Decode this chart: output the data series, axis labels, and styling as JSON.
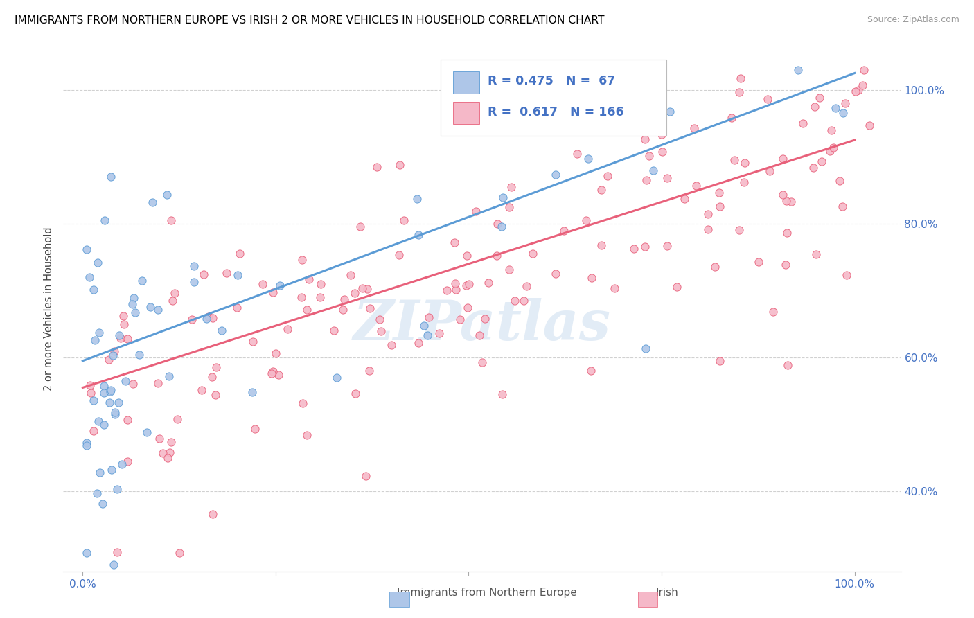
{
  "title": "IMMIGRANTS FROM NORTHERN EUROPE VS IRISH 2 OR MORE VEHICLES IN HOUSEHOLD CORRELATION CHART",
  "source": "Source: ZipAtlas.com",
  "ylabel": "2 or more Vehicles in Household",
  "legend_blue_R": "0.475",
  "legend_blue_N": "67",
  "legend_pink_R": "0.617",
  "legend_pink_N": "166",
  "watermark": "ZIPatlas",
  "blue_color": "#aec6e8",
  "pink_color": "#f5b8c8",
  "blue_line_color": "#5b9bd5",
  "pink_line_color": "#e8607a",
  "legend_text_color": "#4472c4",
  "tick_label_color": "#4472c4",
  "grid_color": "#cccccc",
  "blue_trendline_x0": 0.0,
  "blue_trendline_x1": 1.0,
  "blue_trendline_y0": 0.595,
  "blue_trendline_y1": 1.025,
  "pink_trendline_x0": 0.0,
  "pink_trendline_x1": 1.0,
  "pink_trendline_y0": 0.555,
  "pink_trendline_y1": 0.925,
  "xlim_min": -0.025,
  "xlim_max": 1.06,
  "ylim_min": 0.28,
  "ylim_max": 1.065,
  "yticks": [
    0.4,
    0.6,
    0.8,
    1.0
  ],
  "ytick_labels": [
    "40.0%",
    "60.0%",
    "80.0%",
    "100.0%"
  ],
  "xticks": [
    0.0,
    0.25,
    0.5,
    0.75,
    1.0
  ],
  "xtick_labels": [
    "0.0%",
    "",
    "",
    "",
    "100.0%"
  ]
}
